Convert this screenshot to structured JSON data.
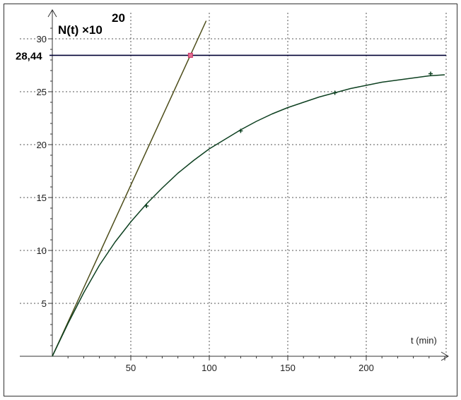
{
  "chart_data": {
    "type": "line",
    "title": "",
    "ylabel": "N(t) ×10",
    "ylabel_exponent": "20",
    "xlabel": "t (min)",
    "xlim": [
      0,
      252
    ],
    "ylim": [
      0,
      32
    ],
    "x_ticks": [
      50,
      100,
      150,
      200
    ],
    "y_ticks": [
      5,
      10,
      15,
      20,
      25,
      30
    ],
    "grid": true,
    "reference_line": {
      "y": 28.44,
      "label": "28,44",
      "color": "#000033"
    },
    "marked_point": {
      "x": 88,
      "y": 28.44,
      "color": "#cc3366"
    },
    "series": [
      {
        "kind": "tangent-line",
        "color": "#4d4d1a",
        "x": [
          0,
          98
        ],
        "y": [
          0,
          31.7
        ]
      },
      {
        "kind": "fit-curve",
        "color": "#0d4020",
        "x": [
          0,
          10,
          20,
          30,
          40,
          50,
          60,
          70,
          80,
          90,
          100,
          110,
          120,
          130,
          140,
          150,
          160,
          170,
          180,
          190,
          200,
          210,
          220,
          230,
          240,
          250
        ],
        "y": [
          0,
          3.1,
          6.0,
          8.6,
          10.8,
          12.7,
          14.4,
          15.9,
          17.3,
          18.5,
          19.6,
          20.5,
          21.4,
          22.2,
          22.9,
          23.5,
          24.0,
          24.5,
          24.9,
          25.3,
          25.6,
          25.9,
          26.1,
          26.3,
          26.5,
          26.6
        ]
      },
      {
        "kind": "measured-points",
        "color": "#0d4020",
        "x": [
          60,
          120,
          180,
          241
        ],
        "y": [
          14.2,
          21.3,
          24.9,
          26.7
        ]
      }
    ]
  }
}
